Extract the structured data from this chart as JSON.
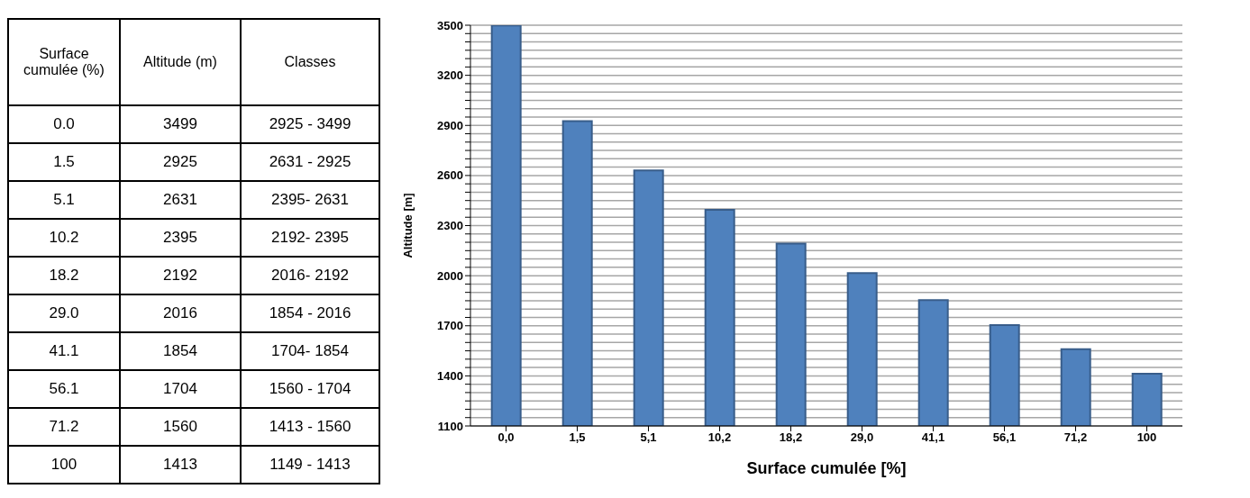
{
  "chart_data": {
    "type": "bar",
    "categories": [
      "0,0",
      "1,5",
      "5,1",
      "10,2",
      "18,2",
      "29,0",
      "41,1",
      "56,1",
      "71,2",
      "100"
    ],
    "values": [
      3499,
      2925,
      2631,
      2395,
      2192,
      2016,
      1854,
      1704,
      1560,
      1413
    ],
    "color": "#4f81bd",
    "xlabel": "Surface cumulée [%]",
    "ylabel": "Altitude [m]",
    "ylim": [
      1100,
      3500
    ],
    "yticks": [
      1100,
      {
        "value": 1150,
        "label": null
      },
      {
        "value": 1200,
        "label": null
      },
      {
        "value": 1250,
        "label": null
      },
      {
        "value": 1300,
        "label": null
      },
      {
        "value": 1350,
        "label": null
      },
      1400,
      {
        "value": 1450,
        "label": null
      },
      {
        "value": 1500,
        "label": null
      },
      {
        "value": 1550,
        "label": null
      },
      {
        "value": 1600,
        "label": null
      },
      {
        "value": 1650,
        "label": null
      },
      1700,
      {
        "value": 1750,
        "label": null
      },
      {
        "value": 1800,
        "label": null
      },
      {
        "value": 1850,
        "label": null
      },
      {
        "value": 1900,
        "label": null
      },
      {
        "value": 1950,
        "label": null
      },
      2000,
      {
        "value": 2050,
        "label": null
      },
      {
        "value": 2100,
        "label": null
      },
      {
        "value": 2150,
        "label": null
      },
      {
        "value": 2200,
        "label": null
      },
      {
        "value": 2250,
        "label": null
      },
      2300,
      {
        "value": 2350,
        "label": null
      },
      {
        "value": 2400,
        "label": null
      },
      {
        "value": 2450,
        "label": null
      },
      {
        "value": 2500,
        "label": null
      },
      {
        "value": 2550,
        "label": null
      },
      2600,
      {
        "value": 2650,
        "label": null
      },
      {
        "value": 2700,
        "label": null
      },
      {
        "value": 2750,
        "label": null
      },
      {
        "value": 2800,
        "label": null
      },
      {
        "value": 2850,
        "label": null
      },
      2900,
      {
        "value": 2950,
        "label": null
      },
      {
        "value": 3000,
        "label": null
      },
      {
        "value": 3050,
        "label": null
      },
      {
        "value": 3100,
        "label": null
      },
      {
        "value": 3150,
        "label": null
      },
      3200,
      {
        "value": 3250,
        "label": null
      },
      {
        "value": 3300,
        "label": null
      },
      {
        "value": 3350,
        "label": null
      },
      {
        "value": 3400,
        "label": null
      },
      {
        "value": 3450,
        "label": null
      },
      3500
    ],
    "grid": "y",
    "annotations": [
      "Surface cumulée (%)",
      "Altitude (m)",
      "Classes",
      "0.0",
      "3499",
      "2925 - 3499",
      "1.5",
      "2925",
      "2631 - 2925",
      "5.1",
      "2631",
      "2395- 2631",
      "10.2",
      "2395",
      "2192- 2395",
      "18.2",
      "2192",
      "2016- 2192",
      "29.0",
      "2016",
      "1854 - 2016",
      "41.1",
      "1854",
      "1704- 1854",
      "56.1",
      "1704",
      "1560 - 1704",
      "71.2",
      "1560",
      "1413 - 1560",
      "100",
      "1413",
      "1149 - 1413"
    ]
  }
}
